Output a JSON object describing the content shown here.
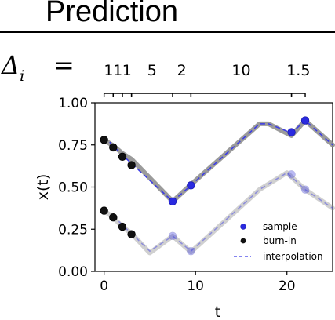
{
  "title": "Prediction",
  "delta_symbol": "Δ",
  "delta_subscript": "i",
  "equals": "=",
  "intervals": [
    {
      "label": "1",
      "start": 0,
      "end": 1
    },
    {
      "label": "1",
      "start": 1,
      "end": 2
    },
    {
      "label": "1",
      "start": 2,
      "end": 3
    },
    {
      "label": "5",
      "start": 3,
      "end": 7.5
    },
    {
      "label": "2",
      "start": 7.5,
      "end": 9.5
    },
    {
      "label": "10",
      "start": 9.5,
      "end": 20.5
    },
    {
      "label": "1.5",
      "start": 20.5,
      "end": 22
    }
  ],
  "chart_data": {
    "type": "line",
    "xlabel": "t",
    "ylabel": "x(t)",
    "xlim": [
      -1,
      25
    ],
    "ylim": [
      0,
      1
    ],
    "xticks": [
      0,
      10,
      20
    ],
    "yticks": [
      0.0,
      0.25,
      0.5,
      0.75,
      1.0
    ],
    "ytick_labels": [
      "0.00",
      "0.25",
      "0.50",
      "0.75",
      "1.00"
    ],
    "legend": {
      "placement": "bottom-right",
      "entries": [
        "sample",
        "burn-in",
        "interpolation"
      ]
    },
    "colors": {
      "sample": "#2a2ae0",
      "burn_in": "#111111",
      "interpolation": "#3a3ae8",
      "truth": "#8a8a8a"
    },
    "series": [
      {
        "truth": [
          [
            0,
            0.78
          ],
          [
            1,
            0.745
          ],
          [
            2,
            0.7
          ],
          [
            3,
            0.665
          ],
          [
            7.5,
            0.415
          ],
          [
            9.5,
            0.515
          ],
          [
            17,
            0.875
          ],
          [
            18,
            0.875
          ],
          [
            20.5,
            0.805
          ],
          [
            22,
            0.895
          ],
          [
            25,
            0.75
          ]
        ],
        "burn_in": [
          [
            0,
            0.78
          ],
          [
            1,
            0.735
          ],
          [
            2,
            0.68
          ],
          [
            3,
            0.63
          ]
        ],
        "samples": [
          [
            7.5,
            0.415
          ],
          [
            9.5,
            0.51
          ],
          [
            20.5,
            0.825
          ],
          [
            22,
            0.895
          ]
        ],
        "interpolation": [
          [
            0,
            0.8
          ],
          [
            1,
            0.745
          ],
          [
            2,
            0.69
          ],
          [
            3,
            0.64
          ],
          [
            7.5,
            0.415
          ],
          [
            9.5,
            0.51
          ],
          [
            17,
            0.875
          ],
          [
            18,
            0.875
          ],
          [
            20.5,
            0.82
          ],
          [
            22,
            0.895
          ],
          [
            25,
            0.75
          ]
        ],
        "faded": false
      },
      {
        "truth": [
          [
            0,
            0.36
          ],
          [
            1,
            0.32
          ],
          [
            2,
            0.265
          ],
          [
            3,
            0.225
          ],
          [
            5,
            0.11
          ],
          [
            7.5,
            0.21
          ],
          [
            9.5,
            0.115
          ],
          [
            17,
            0.485
          ],
          [
            20,
            0.585
          ],
          [
            22,
            0.485
          ],
          [
            25,
            0.375
          ]
        ],
        "burn_in": [
          [
            0,
            0.36
          ],
          [
            1,
            0.32
          ],
          [
            2,
            0.265
          ],
          [
            3,
            0.22
          ]
        ],
        "samples": [
          [
            7.5,
            0.21
          ],
          [
            9.5,
            0.12
          ],
          [
            20.5,
            0.575
          ],
          [
            22,
            0.485
          ]
        ],
        "interpolation": [
          [
            1,
            0.33
          ],
          [
            2,
            0.275
          ],
          [
            3,
            0.225
          ],
          [
            5,
            0.12
          ],
          [
            7.5,
            0.21
          ],
          [
            9.5,
            0.12
          ],
          [
            17,
            0.485
          ],
          [
            20,
            0.585
          ],
          [
            22,
            0.485
          ],
          [
            25,
            0.375
          ]
        ],
        "faded": true
      }
    ]
  }
}
